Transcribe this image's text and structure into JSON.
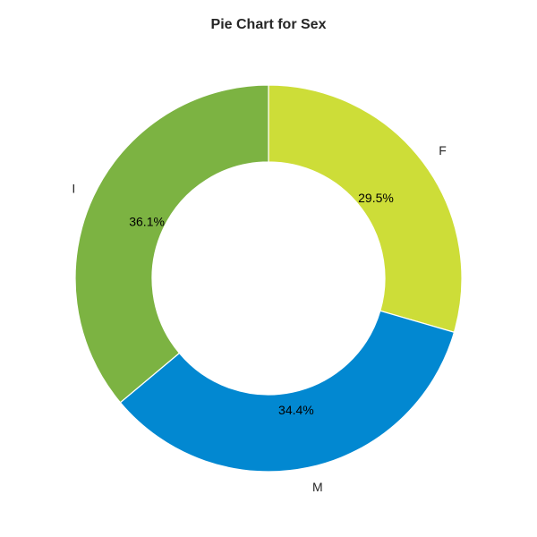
{
  "chart_data": {
    "type": "pie",
    "title": "Pie Chart for Sex",
    "donut": true,
    "start_angle_deg": 90,
    "direction": "clockwise",
    "slices": [
      {
        "label": "F",
        "value": 29.5,
        "pct_label": "29.5%",
        "color": "#cddd38"
      },
      {
        "label": "M",
        "value": 34.4,
        "pct_label": "34.4%",
        "color": "#0288d1"
      },
      {
        "label": "I",
        "value": 36.1,
        "pct_label": "36.1%",
        "color": "#7cb342"
      }
    ],
    "edge_color": "#ffffff"
  }
}
